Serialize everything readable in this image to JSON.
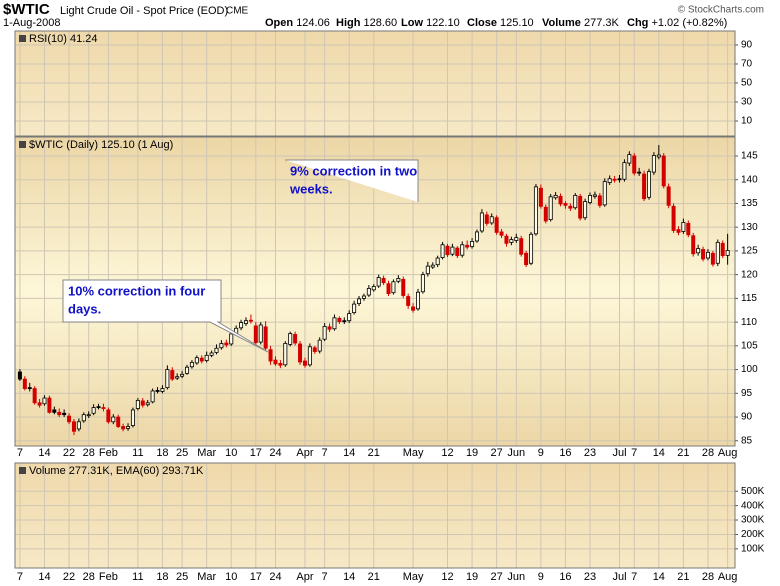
{
  "header": {
    "symbol": "$WTIC",
    "name": "Light Crude Oil - Spot Price (EOD)",
    "exchange": "CME",
    "date": "1-Aug-2008",
    "credit": "© StockCharts.com",
    "quote": [
      {
        "label": "Open",
        "value": "124.06"
      },
      {
        "label": "High",
        "value": "128.60"
      },
      {
        "label": "Low",
        "value": "122.10"
      },
      {
        "label": "Close",
        "value": "125.10"
      },
      {
        "label": "Volume",
        "value": "277.3K"
      },
      {
        "label": "Chg",
        "value": "+1.02 (+0.82%)"
      }
    ]
  },
  "chart_data": [
    {
      "type": "line",
      "title": "RSI(10) 41.24",
      "ylim": [
        -5.8,
        104.7
      ],
      "yticks": [
        10,
        30,
        50,
        70,
        90
      ],
      "grid": true
    },
    {
      "type": "candlestick",
      "title": "$WTIC (Daily) 125.10 (1 Aug)",
      "up_color": "#000000",
      "down_color": "#d40000",
      "ylim": [
        83.9,
        149
      ],
      "yticks": [
        85,
        90,
        95,
        100,
        105,
        110,
        115,
        120,
        125,
        130,
        135,
        140,
        145
      ],
      "xlim": [
        -1,
        145.5
      ],
      "xticks": [
        {
          "value": 0,
          "label": "7"
        },
        {
          "value": 5,
          "label": "14"
        },
        {
          "value": 10,
          "label": "22"
        },
        {
          "value": 14,
          "label": "28"
        },
        {
          "value": 18,
          "label": "Feb"
        },
        {
          "value": 24,
          "label": "11"
        },
        {
          "value": 29,
          "label": "18"
        },
        {
          "value": 33,
          "label": "25"
        },
        {
          "value": 38,
          "label": "Mar"
        },
        {
          "value": 43,
          "label": "10"
        },
        {
          "value": 48,
          "label": "17"
        },
        {
          "value": 52,
          "label": "24"
        },
        {
          "value": 58,
          "label": "Apr"
        },
        {
          "value": 62,
          "label": "7"
        },
        {
          "value": 67,
          "label": "14"
        },
        {
          "value": 72,
          "label": "21"
        },
        {
          "value": 80,
          "label": "May"
        },
        {
          "value": 87,
          "label": "12"
        },
        {
          "value": 92,
          "label": "19"
        },
        {
          "value": 97,
          "label": "27"
        },
        {
          "value": 101,
          "label": "Jun"
        },
        {
          "value": 106,
          "label": "9"
        },
        {
          "value": 111,
          "label": "16"
        },
        {
          "value": 116,
          "label": "23"
        },
        {
          "value": 122,
          "label": "Jul"
        },
        {
          "value": 125,
          "label": "7"
        },
        {
          "value": 130,
          "label": "14"
        },
        {
          "value": 135,
          "label": "21"
        },
        {
          "value": 140,
          "label": "28"
        },
        {
          "value": 144,
          "label": "Aug"
        }
      ],
      "grid": true,
      "open": [
        99.5,
        98,
        96.2,
        96,
        93,
        92.8,
        94,
        91.5,
        91,
        90.8,
        90.2,
        89,
        87.5,
        89.2,
        90.3,
        90.8,
        92.2,
        92,
        91.5,
        89,
        90,
        88,
        87.6,
        88.2,
        91.8,
        93.4,
        92.6,
        93.2,
        95.6,
        95.4,
        96.2,
        99.8,
        98.2,
        98.6,
        99.2,
        100.6,
        101.4,
        102.4,
        101.9,
        103,
        103.6,
        104.6,
        105.6,
        105.4,
        107.6,
        108.8,
        109.7,
        110.4,
        109.2,
        105.8,
        109,
        104.2,
        102,
        101.3,
        101,
        105.3,
        107.4,
        105.4,
        101.8,
        101,
        104.6,
        103.9,
        106.4,
        109,
        108.6,
        110.8,
        110.3,
        110.3,
        112,
        113.9,
        115,
        115.7,
        116.8,
        117.6,
        119.2,
        118.1,
        116.2,
        118.6,
        119,
        115.4,
        113.2,
        112.8,
        116.4,
        120.2,
        121.6,
        122.1,
        123.6,
        126,
        124.3,
        125.6,
        124.1,
        126.2,
        125.9,
        127.1,
        129.2,
        132.6,
        130.9,
        132,
        129,
        128.1,
        126.8,
        127.2,
        127.6,
        124.5,
        122.4,
        128.6,
        138.2,
        134.2,
        131.6,
        136.2,
        136.5,
        135,
        134.4,
        134.1,
        136.5,
        132,
        135.2,
        136.5,
        136.6,
        134.7,
        139.4,
        140.1,
        140.2,
        140.1,
        143.5,
        145,
        141.6,
        141.2,
        136.3,
        141.6,
        144.8,
        145,
        138.5,
        134.4,
        129.5,
        129.1,
        130.8,
        128.2,
        124.6,
        125.3,
        123.5,
        124.5,
        122.4,
        126.6,
        124.06
      ],
      "high": [
        100.1,
        98.6,
        97.2,
        96.5,
        93.8,
        94.6,
        94.5,
        92.2,
        91.8,
        91.6,
        90.8,
        89.6,
        89.7,
        91,
        91.2,
        92.7,
        92.8,
        92.8,
        92,
        90.6,
        90.5,
        88.6,
        88.7,
        92,
        94,
        94,
        93.6,
        96,
        96.3,
        96.7,
        100.9,
        100.5,
        99.2,
        99.7,
        101,
        102,
        103,
        103,
        103.8,
        104,
        105.3,
        106.2,
        106.3,
        108,
        109.3,
        110.5,
        111,
        111.6,
        110,
        110,
        110.2,
        105,
        102.8,
        102,
        106,
        108,
        108,
        106,
        102.5,
        105.5,
        105,
        106.8,
        109.8,
        109.7,
        111.6,
        111.2,
        111,
        112.5,
        114.5,
        115.5,
        116,
        117.8,
        118,
        120,
        119.8,
        118.7,
        119,
        119.9,
        119.6,
        116,
        114,
        117,
        120.6,
        122.7,
        122.6,
        124,
        126.9,
        126.5,
        126.5,
        126,
        127,
        127.2,
        127.7,
        129.5,
        133.8,
        133.3,
        132.9,
        132.5,
        129.6,
        128.6,
        128,
        128.6,
        128.2,
        125,
        129,
        139.1,
        139,
        134.8,
        137,
        137.4,
        137.1,
        135.5,
        135,
        137.2,
        137,
        136,
        137.3,
        137.5,
        137.2,
        140.3,
        140.9,
        140.8,
        141,
        144.3,
        146,
        145.6,
        142.5,
        141.9,
        142.3,
        145.8,
        147.3,
        145.6,
        139.2,
        135,
        130.2,
        131.8,
        131.4,
        128.8,
        126.3,
        125.9,
        125.4,
        125,
        127.4,
        127.2,
        128.6
      ],
      "low": [
        97.6,
        95.6,
        95.4,
        92.6,
        92,
        92.4,
        90.7,
        90.6,
        90,
        90,
        88.5,
        86.2,
        87,
        88.8,
        89.8,
        90.4,
        91.6,
        91.2,
        88.6,
        88.5,
        87.7,
        87,
        87.1,
        87.8,
        91.4,
        92,
        92.2,
        92.9,
        95,
        95,
        95.8,
        97.6,
        97.8,
        98.2,
        98.9,
        100.2,
        101,
        101.3,
        101.5,
        102.6,
        103.2,
        104.2,
        104.7,
        105,
        107.2,
        108.3,
        109.2,
        109.7,
        105.2,
        105.3,
        104,
        101,
        100.8,
        100.3,
        100.6,
        104.9,
        105.1,
        101,
        100.4,
        100.6,
        103.3,
        103.4,
        106,
        107.9,
        108.2,
        109.6,
        109.6,
        109.8,
        111.6,
        113.4,
        114.5,
        115.3,
        116.4,
        117.2,
        117.8,
        115.5,
        115.8,
        118.2,
        115.1,
        112.8,
        112,
        112.4,
        116,
        119.6,
        121.2,
        121.6,
        123.2,
        123.7,
        123.9,
        123.5,
        123.6,
        125.3,
        125.5,
        126.7,
        128.8,
        130.3,
        130.5,
        128.4,
        127.7,
        125.9,
        126.2,
        126.7,
        123.8,
        121.6,
        122,
        128.2,
        133.9,
        130.8,
        131.2,
        135.8,
        134.4,
        133.9,
        133.4,
        133.7,
        131.4,
        131.5,
        134.8,
        136,
        134.1,
        134.3,
        138.9,
        139.4,
        139.4,
        139.6,
        142.9,
        140.9,
        140.8,
        135.5,
        135.8,
        141,
        144.3,
        138.2,
        134,
        128.8,
        128.3,
        128.6,
        127.9,
        123.8,
        124,
        122.8,
        123,
        121.7,
        121.8,
        123.5,
        122.1
      ],
      "close": [
        98,
        96,
        96,
        93,
        92.5,
        94,
        91,
        91,
        90.5,
        90.5,
        89,
        87,
        89,
        90.5,
        90.5,
        92,
        92,
        91.8,
        89,
        90,
        88,
        87.5,
        88,
        91.5,
        93.5,
        92.5,
        93,
        95.5,
        95.5,
        96,
        100,
        98,
        98.5,
        99,
        100.5,
        101.5,
        102.5,
        101.8,
        103,
        103.5,
        104.5,
        105.5,
        105.2,
        107.5,
        108.7,
        109.9,
        110.3,
        110.2,
        105.7,
        109.4,
        104.5,
        101.8,
        101.2,
        100.9,
        105.5,
        107.6,
        105.6,
        101.6,
        100.9,
        104.8,
        103.8,
        106.2,
        109.1,
        108.5,
        110.9,
        110.1,
        110.1,
        111.8,
        113.8,
        114.9,
        115.5,
        117.1,
        117.5,
        119.4,
        118.3,
        116,
        118.5,
        119.2,
        115.6,
        113.5,
        112.5,
        116.3,
        120,
        121.8,
        122,
        123.5,
        126.3,
        124.2,
        125.8,
        124,
        126.3,
        125.8,
        127,
        129,
        133,
        130.8,
        132.2,
        128.9,
        128.3,
        126.6,
        127.4,
        127.8,
        124.3,
        122.1,
        128.5,
        138.5,
        134.4,
        131.3,
        136.4,
        136.7,
        134.9,
        134.6,
        134,
        136.7,
        131.9,
        135.4,
        136.7,
        136.8,
        134.6,
        139.6,
        140.2,
        140,
        140,
        143.6,
        145.3,
        141.4,
        141.4,
        136,
        141.7,
        145.1,
        145.2,
        138.7,
        134.6,
        129.3,
        128.9,
        131,
        128.4,
        124.4,
        125.5,
        123.3,
        124.7,
        122.2,
        126.8,
        124,
        125.1
      ],
      "annotations": [
        {
          "lines": [
            "9% correction in two",
            "weeks."
          ]
        },
        {
          "lines": [
            "10% correction in four",
            "days."
          ]
        }
      ]
    },
    {
      "type": "bar",
      "title": "Volume 277.31K, EMA(60) 293.71K",
      "ylim": [
        -33000,
        696000
      ],
      "yticks": [
        {
          "value": 100000,
          "label": "100K"
        },
        {
          "value": 200000,
          "label": "200K"
        },
        {
          "value": 300000,
          "label": "300K"
        },
        {
          "value": 400000,
          "label": "400K"
        },
        {
          "value": 500000,
          "label": "500K"
        }
      ],
      "grid": true
    }
  ]
}
